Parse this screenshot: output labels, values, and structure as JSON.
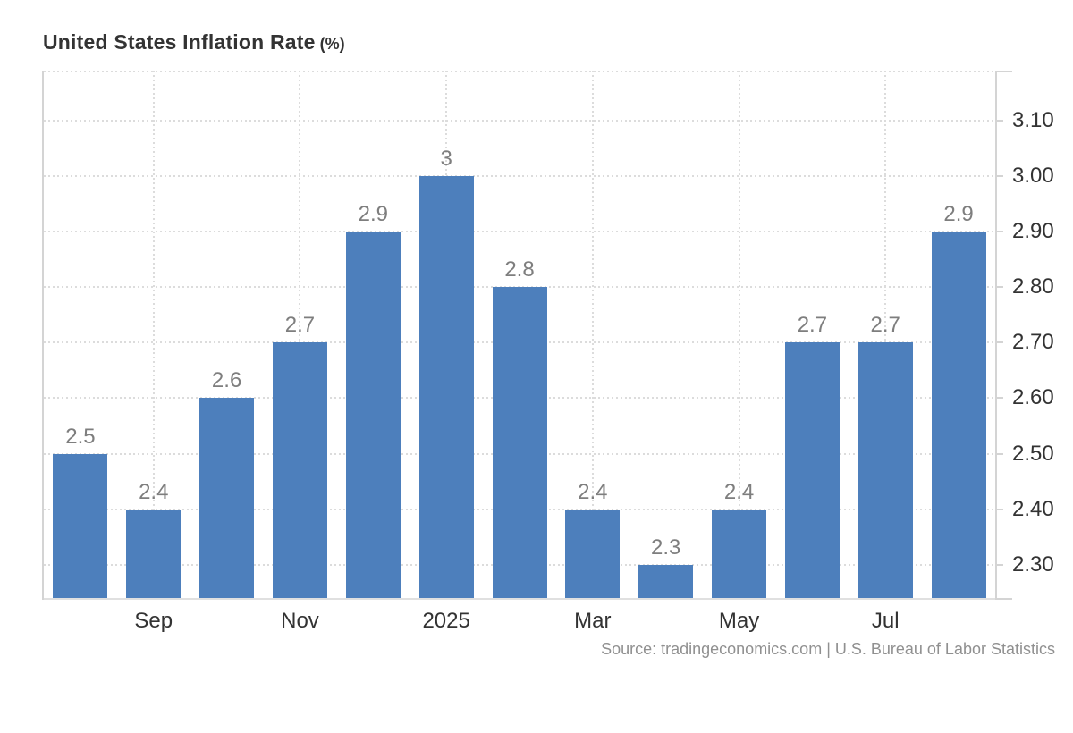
{
  "title": {
    "main": "United States Inflation Rate",
    "unit": "(%)"
  },
  "source": "Source: tradingeconomics.com | U.S. Bureau of Labor Statistics",
  "colors": {
    "bar": "#4d7fbc",
    "grid": "#dcdcdc",
    "axis": "#d4d4d4",
    "axis_bottom": "#e0e0e0",
    "value_label": "#7e7e7e",
    "tick_label": "#333333",
    "title": "#333333",
    "source": "#909090",
    "background": "#ffffff"
  },
  "chart_data": {
    "type": "bar",
    "title": "United States Inflation Rate (%)",
    "categories": [
      "",
      "Sep",
      "",
      "Nov",
      "",
      "2025",
      "",
      "Mar",
      "",
      "May",
      "",
      "Jul",
      ""
    ],
    "values": [
      2.5,
      2.4,
      2.6,
      2.7,
      2.9,
      3,
      2.8,
      2.4,
      2.3,
      2.4,
      2.7,
      2.7,
      2.9
    ],
    "bar_labels": [
      "2.5",
      "2.4",
      "2.6",
      "2.7",
      "2.9",
      "3",
      "2.8",
      "2.4",
      "2.3",
      "2.4",
      "2.7",
      "2.7",
      "2.9"
    ],
    "y_ticks": [
      {
        "value": 2.3,
        "label": "2.30"
      },
      {
        "value": 2.4,
        "label": "2.40"
      },
      {
        "value": 2.5,
        "label": "2.50"
      },
      {
        "value": 2.6,
        "label": "2.60"
      },
      {
        "value": 2.7,
        "label": "2.70"
      },
      {
        "value": 2.8,
        "label": "2.80"
      },
      {
        "value": 2.9,
        "label": "2.90"
      },
      {
        "value": 3.0,
        "label": "3.00"
      },
      {
        "value": 3.1,
        "label": "3.10"
      }
    ],
    "ylim": [
      2.24,
      3.19
    ],
    "xlabel": "",
    "ylabel": "",
    "grid": true,
    "legend_position": "none",
    "y_axis_side": "right"
  }
}
